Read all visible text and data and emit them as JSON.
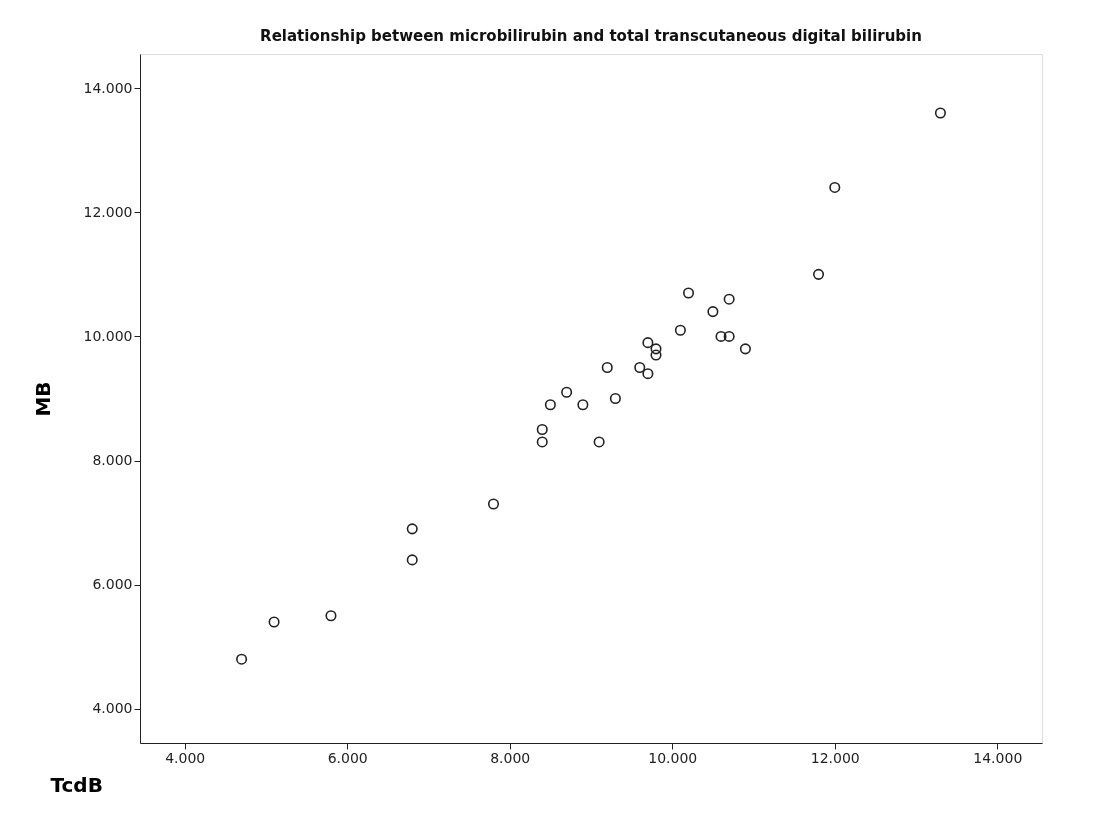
{
  "chart_data": {
    "type": "scatter",
    "title": "Relationship between microbilirubin and total transcutaneous digital bilirubin",
    "xlabel": "TcdB",
    "ylabel": "MB",
    "x": [
      4.7,
      5.1,
      5.8,
      6.8,
      6.8,
      7.8,
      8.4,
      8.4,
      8.5,
      8.7,
      8.9,
      9.1,
      9.3,
      9.2,
      9.6,
      9.7,
      9.7,
      9.8,
      9.8,
      10.1,
      10.2,
      10.5,
      10.6,
      10.7,
      10.7,
      10.9,
      11.8,
      12.0,
      13.3
    ],
    "series": [
      {
        "color": "#222222",
        "values": [
          4.8,
          5.4,
          5.5,
          6.9,
          6.4,
          7.3,
          8.5,
          8.3,
          8.9,
          9.1,
          8.9,
          8.3,
          9.0,
          9.5,
          9.5,
          9.9,
          9.4,
          9.8,
          9.7,
          10.1,
          10.7,
          10.4,
          10.0,
          10.0,
          10.6,
          9.8,
          11.0,
          12.4,
          13.6
        ]
      }
    ],
    "xlim": [
      3.45,
      14.55
    ],
    "ylim": [
      3.45,
      14.55
    ],
    "xticks": [
      {
        "value": 4,
        "label": "4.000"
      },
      {
        "value": 6,
        "label": "6.000"
      },
      {
        "value": 8,
        "label": "8.000"
      },
      {
        "value": 10,
        "label": "10.000"
      },
      {
        "value": 12,
        "label": "12.000"
      },
      {
        "value": 14,
        "label": "14.000"
      }
    ],
    "yticks": [
      {
        "value": 4,
        "label": "4.000"
      },
      {
        "value": 6,
        "label": "6.000"
      },
      {
        "value": 8,
        "label": "8.000"
      },
      {
        "value": 10,
        "label": "10.000"
      },
      {
        "value": 12,
        "label": "12.000"
      },
      {
        "value": 14,
        "label": "14.000"
      }
    ],
    "grid": false,
    "marker": "circle"
  }
}
